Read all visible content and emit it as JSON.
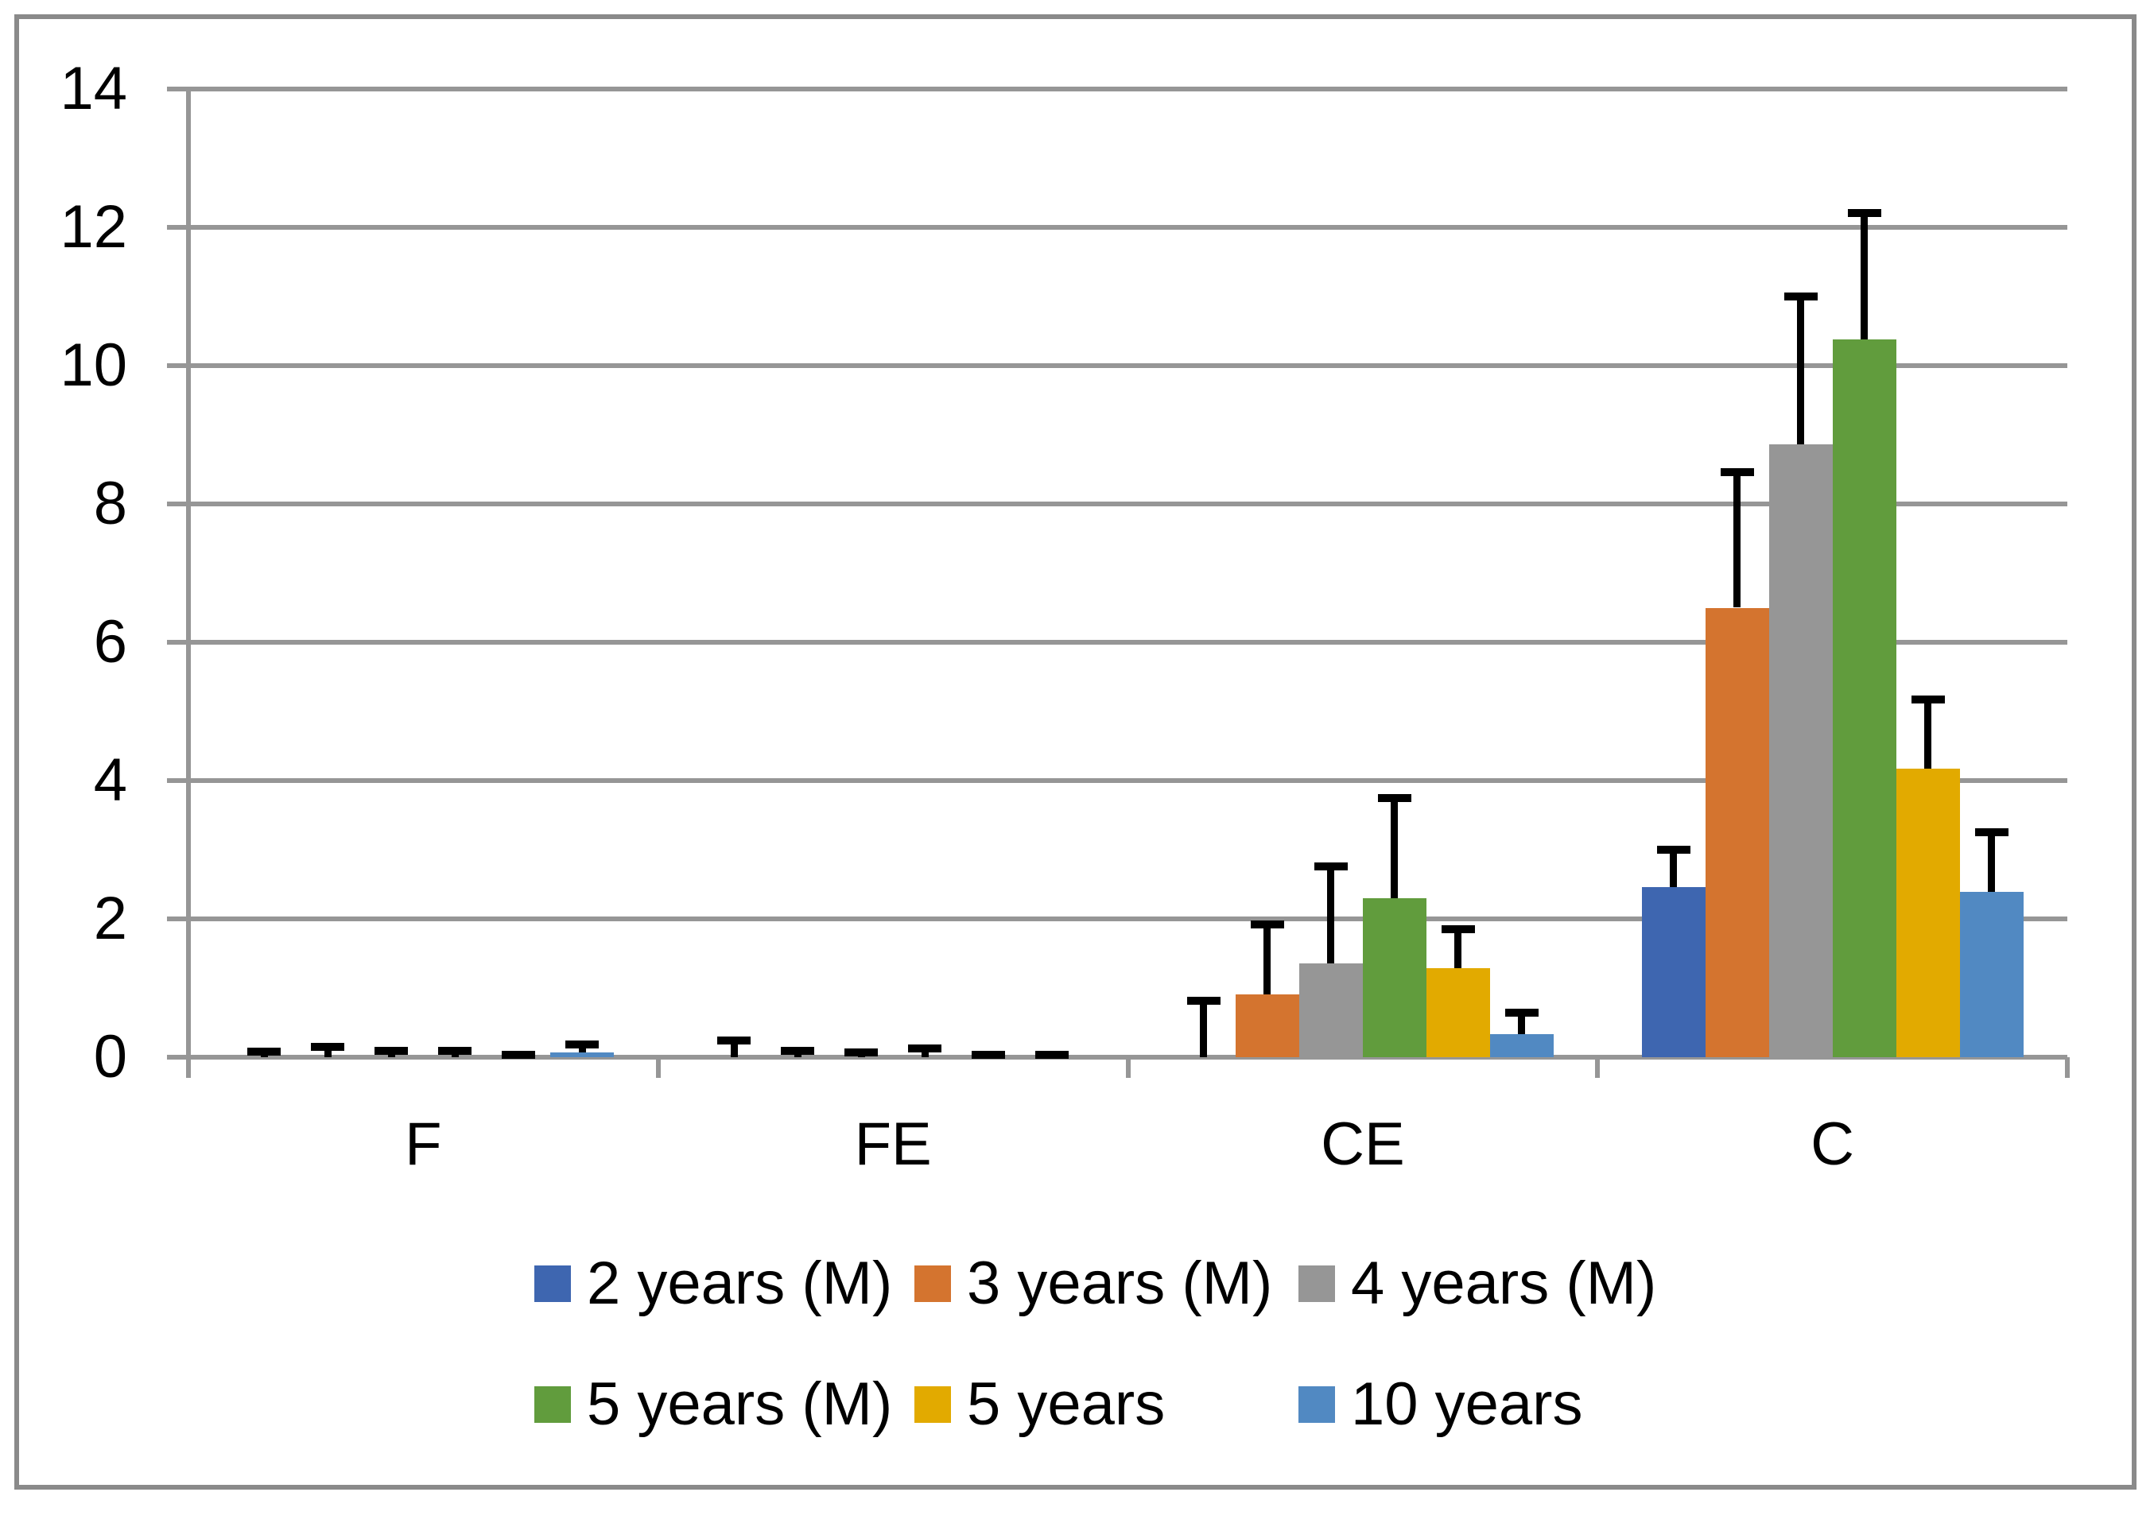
{
  "chart_data": {
    "type": "bar",
    "title": "",
    "xlabel": "",
    "ylabel": "",
    "categories": [
      "F",
      "FE",
      "CE",
      "C"
    ],
    "series": [
      {
        "name": "2 years (M)",
        "color": "#3E66B0",
        "values": [
          0,
          0,
          0,
          2.46
        ],
        "errors_up": [
          0.14,
          0.3,
          0.87,
          0.6
        ]
      },
      {
        "name": "3 years (M)",
        "color": "#D4742F",
        "values": [
          0,
          0,
          0.91,
          6.5
        ],
        "errors_up": [
          0.21,
          0.15,
          1.07,
          2.02
        ]
      },
      {
        "name": "4 years (M)",
        "color": "#969696",
        "values": [
          0,
          0,
          1.36,
          8.86
        ],
        "errors_up": [
          0.15,
          0.13,
          1.46,
          2.2
        ]
      },
      {
        "name": "5 years (M)",
        "color": "#619C3D",
        "values": [
          0,
          0,
          2.3,
          10.38
        ],
        "errors_up": [
          0.15,
          0.18,
          1.5,
          1.89
        ]
      },
      {
        "name": "5 years",
        "color": "#E2AA00",
        "values": [
          0,
          0,
          1.29,
          4.17
        ],
        "errors_up": [
          0.09,
          0.09,
          0.62,
          1.06
        ]
      },
      {
        "name": "10 years",
        "color": "#5189C2",
        "values": [
          0.07,
          0,
          0.33,
          2.39
        ],
        "errors_up": [
          0.17,
          0.09,
          0.37,
          0.92
        ]
      }
    ],
    "ylim": [
      0,
      14
    ],
    "yticks": [
      0,
      2,
      4,
      6,
      8,
      10,
      12,
      14
    ],
    "grid": true,
    "error_bars": "upper",
    "error_color": "#000000",
    "axis_color": "#969696",
    "legend_position": "bottom",
    "legend_rows": [
      [
        "2 years (M)",
        "3 years (M)",
        "4 years (M)"
      ],
      [
        "5 years (M)",
        "5 years",
        "10 years"
      ]
    ]
  }
}
